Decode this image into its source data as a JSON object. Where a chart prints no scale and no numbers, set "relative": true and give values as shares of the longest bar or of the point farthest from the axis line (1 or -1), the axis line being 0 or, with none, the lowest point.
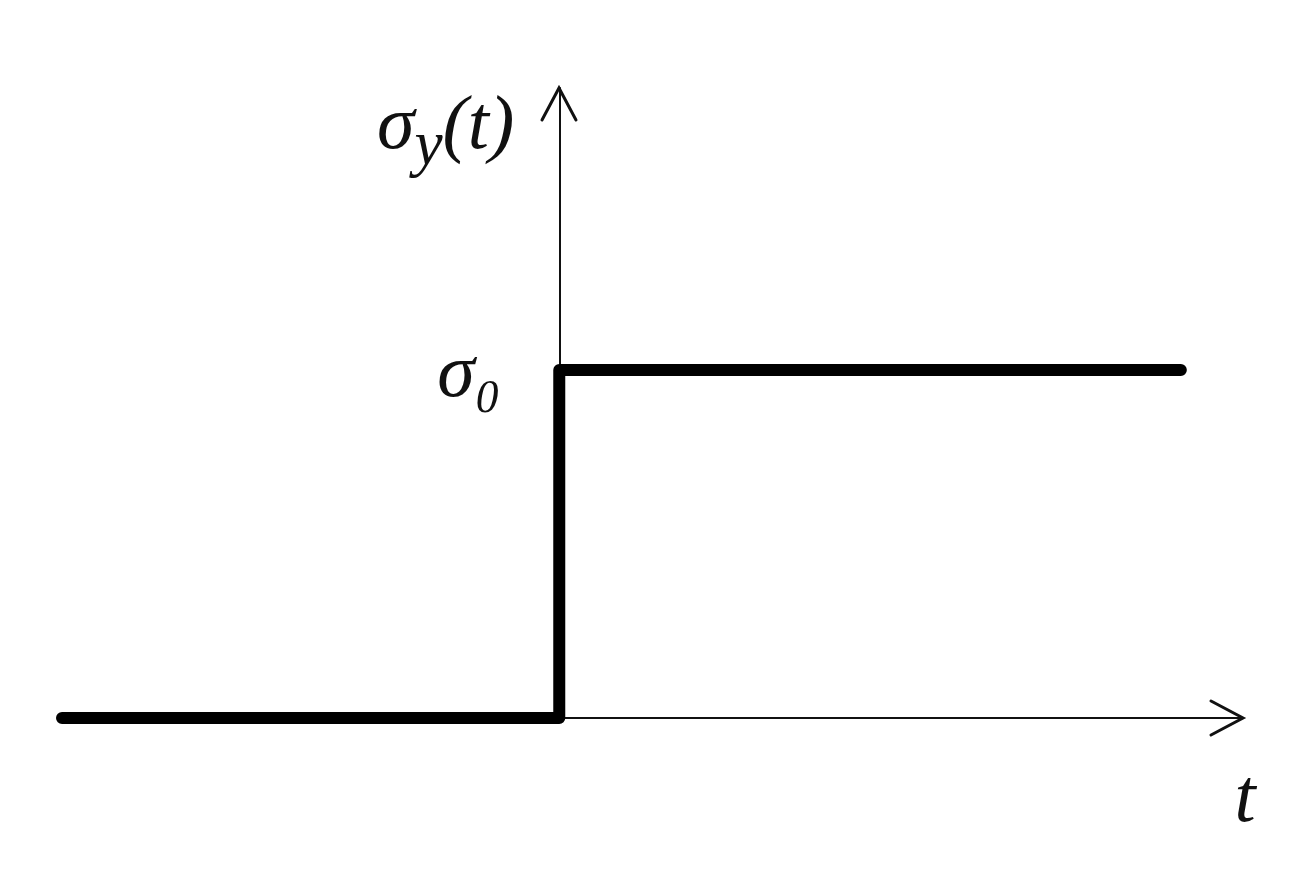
{
  "chart_data": {
    "type": "step",
    "ylabel": "σ$_{y}$(t)",
    "xlabel": "t",
    "annotations": [
      "σ₀"
    ],
    "categories": [
      null,
      null,
      null,
      null,
      null,
      null,
      null,
      null,
      null,
      null
    ],
    "series": [
      {
        "color": "#000000",
        "values": [
          0,
          0,
          0,
          0,
          1,
          1,
          1,
          1,
          1,
          1
        ]
      }
    ],
    "relative": true
  }
}
